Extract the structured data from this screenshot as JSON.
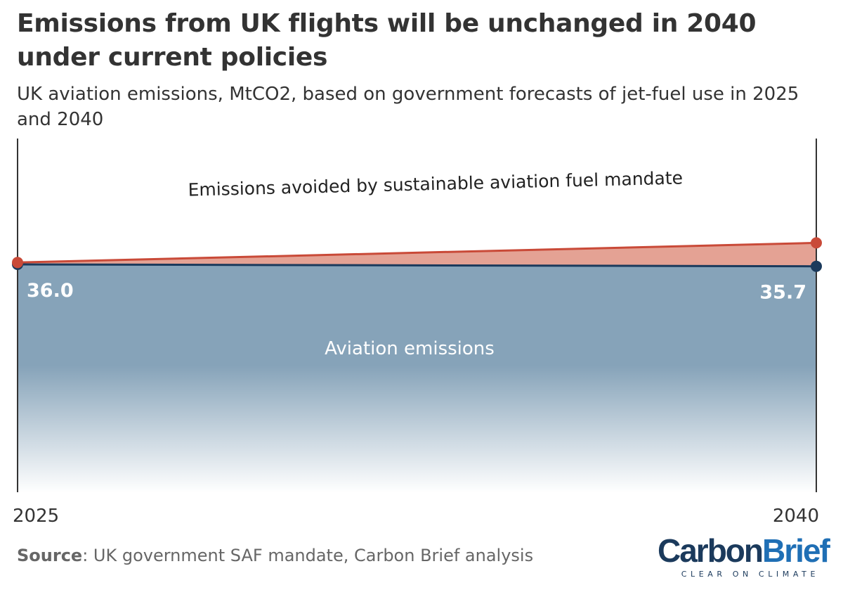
{
  "title": "Emissions from UK flights will be unchanged in 2040 under current policies",
  "subtitle": "UK aviation emissions, MtCO2, based on government forecasts of jet-fuel use in 2025 and 2040",
  "source": {
    "label": "Source",
    "text": ": UK government SAF mandate, Carbon Brief analysis"
  },
  "logo": {
    "part1": "Carbon",
    "part2": "Brief",
    "tagline": "CLEAR ON CLIMATE"
  },
  "colors": {
    "aviation_fill": "#86a3b9",
    "aviation_line": "#1b3a5c",
    "avoided_fill": "#e4a294",
    "avoided_line": "#c94a38",
    "logo_carbon": "#1b3a5c",
    "logo_brief": "#1f6fb5"
  },
  "chart_data": {
    "type": "area",
    "x": [
      2025,
      2040
    ],
    "x_tick_labels": [
      "2025",
      "2040"
    ],
    "series": [
      {
        "name": "Aviation emissions",
        "values": [
          36.0,
          35.7
        ],
        "value_labels": [
          "36.0",
          "35.7"
        ]
      },
      {
        "name": "Emissions avoided by sustainable aviation fuel mandate",
        "values": [
          0.3,
          3.7
        ]
      }
    ],
    "ylabel": "MtCO2",
    "ylim": [
      0,
      42
    ]
  }
}
